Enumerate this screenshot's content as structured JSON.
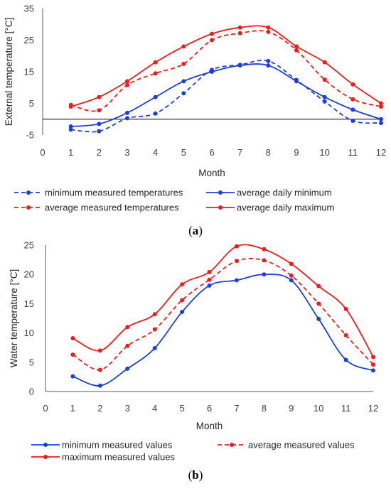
{
  "colors": {
    "blue": "#1f3fd6",
    "red": "#ef1c1c",
    "axis": "#595959",
    "zero": "#000000"
  },
  "chart_data": [
    {
      "type": "line",
      "panel": "(a)",
      "panel_letter": "a",
      "title": "",
      "xlabel": "Month",
      "ylabel": "External temperature [°C]",
      "xlim": [
        0,
        12
      ],
      "ylim": [
        -5,
        35
      ],
      "xticks": [
        "0",
        "1",
        "2",
        "3",
        "4",
        "5",
        "6",
        "7",
        "8",
        "9",
        "10",
        "11",
        "12"
      ],
      "yticks": [
        "-5",
        "5",
        "15",
        "25",
        "35"
      ],
      "grid": false,
      "legend_position": "bottom",
      "x": [
        1,
        2,
        3,
        4,
        5,
        6,
        7,
        8,
        9,
        10,
        11,
        12
      ],
      "series": [
        {
          "name": "minimum measured temperatures",
          "color": "blue",
          "dashed": true,
          "values": [
            -3.3,
            -3.8,
            0.3,
            1.8,
            8.2,
            15.6,
            17.2,
            18.4,
            12.4,
            5.6,
            -0.5,
            -1.2
          ]
        },
        {
          "name": "average daily minimum",
          "color": "blue",
          "dashed": false,
          "values": [
            -2.3,
            -1.5,
            2.0,
            7.0,
            12.0,
            15.0,
            17.0,
            17.0,
            12.0,
            7.0,
            3.0,
            0.0
          ]
        },
        {
          "name": "average measured temperatures",
          "color": "red",
          "dashed": true,
          "values": [
            4.5,
            2.8,
            10.8,
            14.5,
            17.5,
            25.0,
            27.2,
            27.6,
            21.8,
            12.5,
            6.3,
            4.0
          ]
        },
        {
          "name": "average daily maximum",
          "color": "red",
          "dashed": false,
          "values": [
            4.0,
            7.0,
            12.0,
            18.0,
            23.0,
            27.0,
            29.0,
            29.0,
            23.0,
            18.0,
            11.0,
            5.0
          ]
        }
      ],
      "legend_order": [
        0,
        1,
        2,
        3
      ]
    },
    {
      "type": "line",
      "panel": "(b)",
      "panel_letter": "b",
      "title": "",
      "xlabel": "Month",
      "ylabel": "Water temperature [°C]",
      "xlim": [
        0,
        12
      ],
      "ylim": [
        0,
        25
      ],
      "xticks": [
        "0",
        "1",
        "2",
        "3",
        "4",
        "5",
        "6",
        "7",
        "8",
        "9",
        "10",
        "11",
        "12"
      ],
      "yticks": [
        "0",
        "5",
        "10",
        "15",
        "20",
        "25"
      ],
      "grid": false,
      "legend_position": "bottom",
      "x": [
        1,
        2,
        3,
        4,
        5,
        6,
        7,
        8,
        9,
        10,
        11,
        12
      ],
      "series": [
        {
          "name": "minimum measured values",
          "color": "blue",
          "dashed": false,
          "values": [
            2.6,
            1.0,
            3.9,
            7.4,
            13.6,
            18.1,
            19.0,
            20.0,
            19.0,
            12.4,
            5.4,
            3.6
          ]
        },
        {
          "name": "average measured values",
          "color": "red",
          "dashed": true,
          "values": [
            6.3,
            3.7,
            7.8,
            10.6,
            15.6,
            19.1,
            22.3,
            22.4,
            19.8,
            15.0,
            9.6,
            4.6
          ]
        },
        {
          "name": "maximum measured values",
          "color": "red",
          "dashed": false,
          "values": [
            9.1,
            7.0,
            11.0,
            13.2,
            18.3,
            20.4,
            24.8,
            24.3,
            21.8,
            18.0,
            14.1,
            5.9
          ]
        }
      ],
      "legend_order": [
        0,
        1,
        2
      ]
    }
  ]
}
